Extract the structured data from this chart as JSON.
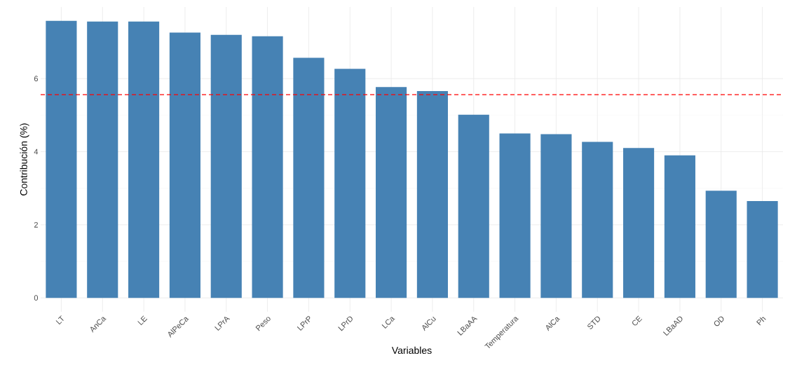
{
  "chart_data": {
    "type": "bar",
    "xlabel": "Variables",
    "ylabel": "Contribución (%)",
    "categories": [
      "LT",
      "AnCa",
      "LE",
      "AlPeCa",
      "LPrA",
      "Peso",
      "LPrP",
      "LPrD",
      "LCa",
      "AlCu",
      "LBaAA",
      "Temperatura",
      "AlCa",
      "STD",
      "CE",
      "LBaAD",
      "OD",
      "Ph"
    ],
    "values": [
      7.58,
      7.56,
      7.56,
      7.26,
      7.2,
      7.16,
      6.57,
      6.27,
      5.77,
      5.66,
      5.01,
      4.5,
      4.48,
      4.27,
      4.1,
      3.9,
      2.93,
      2.65
    ],
    "color": "#4682b4",
    "ylim": [
      -0.38,
      7.96
    ],
    "yticks": [
      0,
      2,
      4,
      6
    ],
    "grid": true,
    "ref_lines": [
      {
        "axis": "y",
        "value": 5.56,
        "color": "#ff0000",
        "line_style": "dashed"
      }
    ]
  }
}
